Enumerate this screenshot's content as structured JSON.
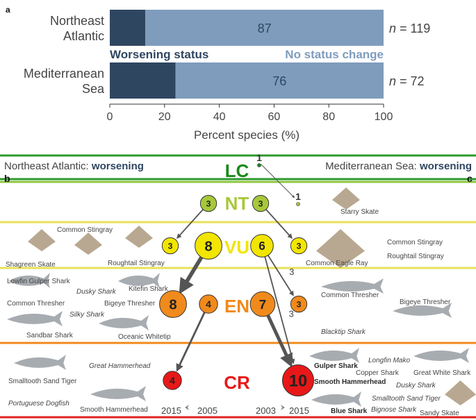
{
  "chart_data": [
    {
      "type": "bar",
      "panel": "a",
      "orientation": "horizontal",
      "stacked": true,
      "categories": [
        [
          "Northeast",
          "Atlantic"
        ],
        [
          "Mediterranean",
          "Sea"
        ]
      ],
      "series": [
        {
          "name": "Worsening status",
          "values": [
            13,
            24
          ],
          "color": "#2f4661"
        },
        {
          "name": "No status change",
          "values": [
            87,
            76
          ],
          "color": "#7f9cbd"
        }
      ],
      "n_labels": [
        "n = 119",
        "n = 72"
      ],
      "xlabel": "Percent species (%)",
      "xlim": [
        0,
        100
      ],
      "xticks": [
        0,
        20,
        40,
        60,
        80,
        100
      ]
    },
    {
      "type": "diagram",
      "panel_left": "b",
      "panel_right": "c",
      "left_title": {
        "region": "Northeast Atlantic: ",
        "status": "worsening"
      },
      "right_title": {
        "region": "Mediterranean Sea: ",
        "status": "worsening"
      },
      "categories": [
        {
          "code": "LC",
          "color": "#1a8a1a",
          "line": "#2e9a2e"
        },
        {
          "code": "NT",
          "color": "#a8c83a",
          "line": "#8dc63f"
        },
        {
          "code": "VU",
          "color": "#f2e500",
          "line": "#e8e15a"
        },
        {
          "code": "EN",
          "color": "#f08a1c",
          "line": "#f08a1c"
        },
        {
          "code": "CR",
          "color": "#e81818",
          "line": "#e02020"
        }
      ],
      "nodes": [
        {
          "id": "nea_nt",
          "side": "left",
          "category": "NT",
          "label": "3",
          "size": 3
        },
        {
          "id": "nea_vu_small",
          "side": "left",
          "category": "VU",
          "label": "3",
          "size": 3
        },
        {
          "id": "nea_vu",
          "side": "left",
          "category": "VU",
          "label": "8",
          "size": 8
        },
        {
          "id": "nea_en",
          "side": "left",
          "category": "EN",
          "label": "8",
          "size": 8
        },
        {
          "id": "nea_en_small",
          "side": "left",
          "category": "EN",
          "label": "4",
          "size": 4
        },
        {
          "id": "nea_cr",
          "side": "left",
          "category": "CR",
          "label": "4",
          "size": 4
        },
        {
          "id": "med_lc",
          "side": "right",
          "category": "LC",
          "label": "1",
          "size": 1
        },
        {
          "id": "med_nt",
          "side": "right",
          "category": "NT",
          "label": "3",
          "size": 3
        },
        {
          "id": "med_nt_small",
          "side": "right",
          "category": "NT",
          "label": "1",
          "size": 1
        },
        {
          "id": "med_vu",
          "side": "right",
          "category": "VU",
          "label": "6",
          "size": 6
        },
        {
          "id": "med_vu_small",
          "side": "right",
          "category": "VU",
          "label": "3",
          "size": 3
        },
        {
          "id": "med_en",
          "side": "right",
          "category": "EN",
          "label": "7",
          "size": 7
        },
        {
          "id": "med_en_small",
          "side": "right",
          "category": "EN",
          "label": "3",
          "size": 3
        },
        {
          "id": "med_cr",
          "side": "right",
          "category": "CR",
          "label": "10",
          "size": 10
        }
      ],
      "edges": [
        {
          "from": "nea_nt",
          "to": "nea_vu_small",
          "value": 3
        },
        {
          "from": "nea_vu",
          "to": "nea_en",
          "value": 8
        },
        {
          "from": "nea_en_small",
          "to": "nea_cr",
          "value": 4
        },
        {
          "from": "med_lc",
          "to": "med_nt_small",
          "value": 1
        },
        {
          "from": "med_nt",
          "to": "med_vu_small",
          "value": 3
        },
        {
          "from": "med_vu",
          "to": "med_en_small",
          "value": 3,
          "label": "3"
        },
        {
          "from": "med_vu",
          "to": "med_cr",
          "value": 3,
          "label": "3"
        },
        {
          "from": "med_en",
          "to": "med_cr",
          "value": 7
        }
      ],
      "species_labels": [
        {
          "text": "Starry Skate",
          "style": "normal"
        },
        {
          "text": "Common Stingray",
          "style": "normal"
        },
        {
          "text": "Shagreen Skate",
          "style": "normal"
        },
        {
          "text": "Roughtail Stingray",
          "style": "normal"
        },
        {
          "text": "Common Eagle Ray",
          "style": "normal"
        },
        {
          "text": "Common Stingray",
          "style": "normal"
        },
        {
          "text": "Roughtail Stingray",
          "style": "normal"
        },
        {
          "text": "Lowfin Gulper Shark",
          "style": "normal"
        },
        {
          "text": "Dusky Shark",
          "style": "italic"
        },
        {
          "text": "Kitefin Shark",
          "style": "normal"
        },
        {
          "text": "Common Thresher",
          "style": "normal"
        },
        {
          "text": "Bigeye Thresher",
          "style": "normal"
        },
        {
          "text": "Silky Shark",
          "style": "italic"
        },
        {
          "text": "Sandbar Shark",
          "style": "normal"
        },
        {
          "text": "Oceanic Whitetip",
          "style": "normal"
        },
        {
          "text": "Common Thresher",
          "style": "normal"
        },
        {
          "text": "Bigeye Thresher",
          "style": "normal"
        },
        {
          "text": "Blacktip Shark",
          "style": "italic"
        },
        {
          "text": "Smalltooth Sand Tiger",
          "style": "normal"
        },
        {
          "text": "Great Hammerhead",
          "style": "italic"
        },
        {
          "text": "Portuguese Dogfish",
          "style": "italic"
        },
        {
          "text": "Smooth Hammerhead",
          "style": "normal"
        },
        {
          "text": "Gulper Shark",
          "style": "bold"
        },
        {
          "text": "Longfin Mako",
          "style": "italic"
        },
        {
          "text": "Copper Shark",
          "style": "normal"
        },
        {
          "text": "Great White Shark",
          "style": "normal"
        },
        {
          "text": "Smooth Hammerhead",
          "style": "bold"
        },
        {
          "text": "Dusky Shark",
          "style": "italic"
        },
        {
          "text": "Smalltooth Sand Tiger",
          "style": "italic"
        },
        {
          "text": "Blue Shark",
          "style": "bold"
        },
        {
          "text": "Bignose Shark",
          "style": "italic"
        },
        {
          "text": "Sandy Skate",
          "style": "normal"
        }
      ],
      "time_left": {
        "from": "2015",
        "to": "2005"
      },
      "time_right": {
        "from": "2003",
        "to": "2015"
      }
    }
  ]
}
